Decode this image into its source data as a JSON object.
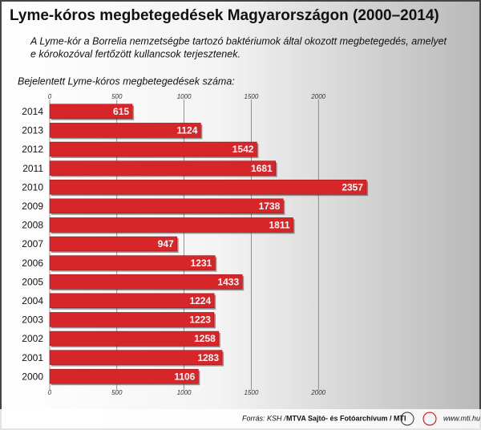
{
  "chart_data": {
    "type": "bar",
    "orientation": "horizontal",
    "title": "Lyme-kóros megbetegedések Magyarországon (2000–2014)",
    "subtitle": [
      "A Lyme-kór a Borrelia nemzetségbe tartozó baktériumok által okozott megbetegedés, amelyet",
      "e kórokozóval fertőzött kullancsok terjesztenek."
    ],
    "value_axis_label": "Bejelentett Lyme-kóros megbetegedések száma:",
    "categories": [
      "2014",
      "2013",
      "2012",
      "2011",
      "2010",
      "2009",
      "2008",
      "2007",
      "2006",
      "2005",
      "2004",
      "2003",
      "2002",
      "2001",
      "2000"
    ],
    "values": [
      615,
      1124,
      1542,
      1681,
      2357,
      1738,
      1811,
      947,
      1231,
      1433,
      1224,
      1223,
      1258,
      1283,
      1106
    ],
    "color": "#d7262a",
    "xlim": [
      0,
      2500
    ],
    "xticks": [
      0,
      500,
      1000,
      1500,
      2000
    ],
    "grid": true,
    "source": [
      "Forrás: KSH /",
      "MTVA Sajtó- és Fotóarchívum / MTI"
    ],
    "website": "www.mti.hu"
  }
}
